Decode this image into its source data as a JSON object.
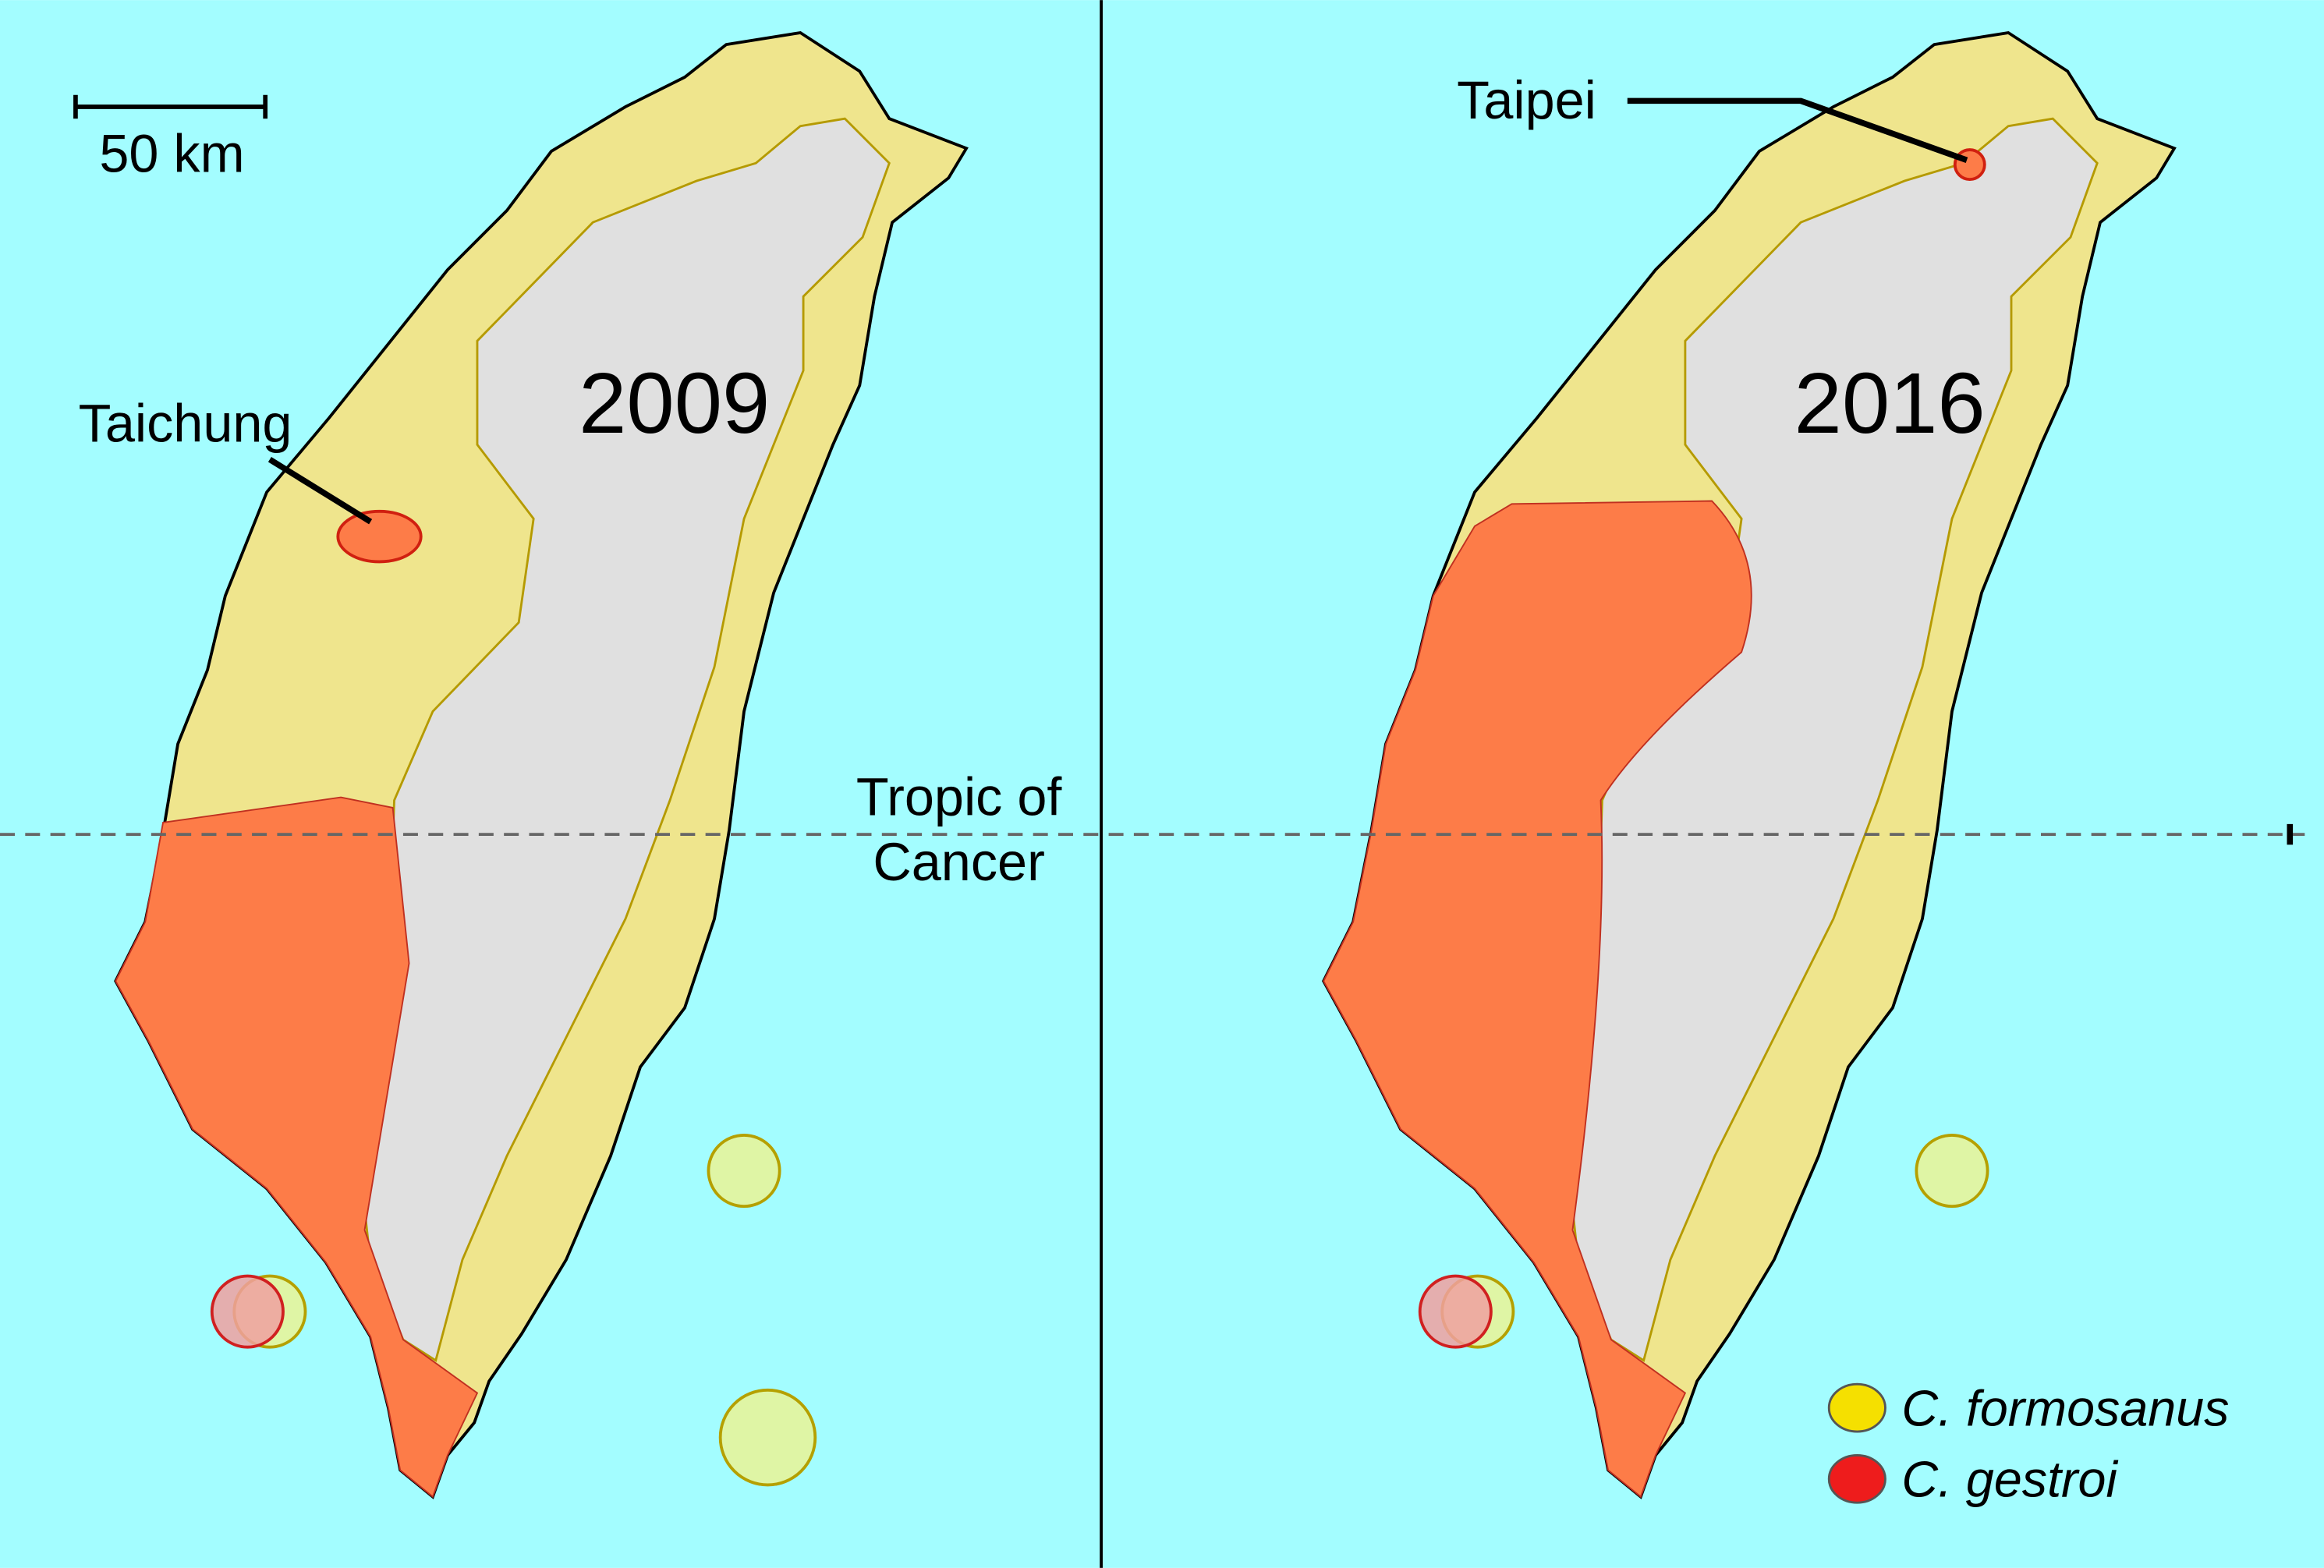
{
  "scale_bar": {
    "label": "50 km"
  },
  "panels": [
    {
      "year": "2009",
      "city": "Taichung"
    },
    {
      "year": "2016",
      "city": "Taipei"
    }
  ],
  "tropic": {
    "lines": [
      "Tropic of",
      "Cancer"
    ]
  },
  "legend": [
    {
      "label": "C. formosanus",
      "color": "#f5e000"
    },
    {
      "label": "C. gestroi",
      "color": "#ee1c1c"
    }
  ]
}
